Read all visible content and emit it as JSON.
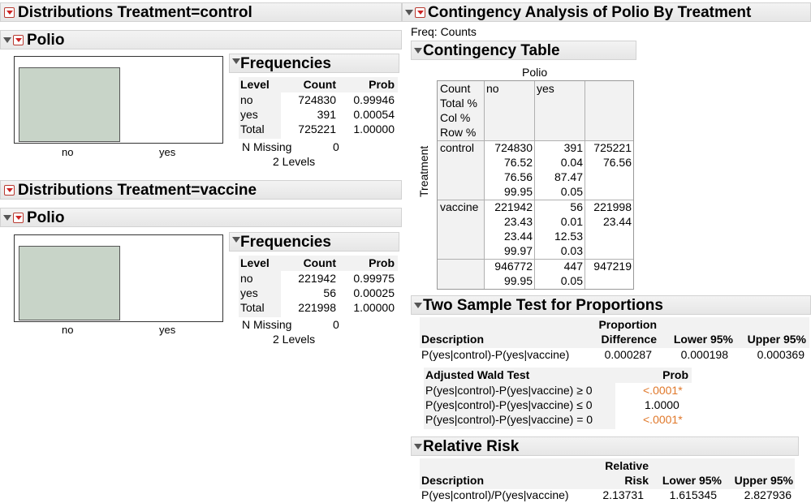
{
  "left": {
    "control": {
      "header": "Distributions Treatment=control",
      "sub_header": "Polio",
      "axis_labels": [
        "no",
        "yes"
      ],
      "freq_title": "Frequencies",
      "cols": [
        "Level",
        "Count",
        "Prob"
      ],
      "rows": [
        [
          "no",
          "724830",
          "0.99946"
        ],
        [
          "yes",
          "391",
          "0.00054"
        ],
        [
          "Total",
          "725221",
          "1.00000"
        ]
      ],
      "n_missing_label": "N Missing",
      "n_missing": "0",
      "levels": "2  Levels",
      "bar_fraction": 0.99946
    },
    "vaccine": {
      "header": "Distributions Treatment=vaccine",
      "sub_header": "Polio",
      "axis_labels": [
        "no",
        "yes"
      ],
      "freq_title": "Frequencies",
      "cols": [
        "Level",
        "Count",
        "Prob"
      ],
      "rows": [
        [
          "no",
          "221942",
          "0.99975"
        ],
        [
          "yes",
          "56",
          "0.00025"
        ],
        [
          "Total",
          "221998",
          "1.00000"
        ]
      ],
      "n_missing_label": "N Missing",
      "n_missing": "0",
      "levels": "2  Levels",
      "bar_fraction": 0.99975
    }
  },
  "right": {
    "header": "Contingency Analysis of Polio By Treatment",
    "freq_counts": "Freq: Counts",
    "ct_title": "Contingency Table",
    "col_var": "Polio",
    "row_var": "Treatment",
    "legend": [
      "Count",
      "Total %",
      "Col %",
      "Row %"
    ],
    "col_heads": [
      "no",
      "yes"
    ],
    "control_label": "control",
    "vaccine_label": "vaccine",
    "control": [
      [
        "724830",
        "391",
        "725221"
      ],
      [
        "76.52",
        "0.04",
        "76.56"
      ],
      [
        "76.56",
        "87.47",
        ""
      ],
      [
        "99.95",
        "0.05",
        ""
      ]
    ],
    "vaccine": [
      [
        "221942",
        "56",
        "221998"
      ],
      [
        "23.43",
        "0.01",
        "23.44"
      ],
      [
        "23.44",
        "12.53",
        ""
      ],
      [
        "99.97",
        "0.03",
        ""
      ]
    ],
    "totals": [
      [
        "946772",
        "447",
        "947219"
      ],
      [
        "99.95",
        "0.05",
        ""
      ]
    ],
    "two_sample": {
      "title": "Two Sample Test for Proportions",
      "h_desc": "Description",
      "h_prop_1": "Proportion",
      "h_prop_2": "Difference",
      "h_lower": "Lower 95%",
      "h_upper": "Upper 95%",
      "row": [
        "P(yes|control)-P(yes|vaccine)",
        "0.000287",
        "0.000198",
        "0.000369"
      ],
      "wald_title": "Adjusted Wald Test",
      "wald_prob": "Prob",
      "wald_rows": [
        [
          "P(yes|control)-P(yes|vaccine) ≥ 0",
          "<.0001*"
        ],
        [
          "P(yes|control)-P(yes|vaccine) ≤ 0",
          "1.0000"
        ],
        [
          "P(yes|control)-P(yes|vaccine) = 0",
          "<.0001*"
        ]
      ]
    },
    "rel_risk": {
      "title": "Relative Risk",
      "h_desc": "Description",
      "h_rr_1": "Relative",
      "h_rr_2": "Risk",
      "h_lower": "Lower 95%",
      "h_upper": "Upper 95%",
      "row": [
        "P(yes|control)/P(yes|vaccine)",
        "2.13731",
        "1.615345",
        "2.827936"
      ]
    }
  }
}
